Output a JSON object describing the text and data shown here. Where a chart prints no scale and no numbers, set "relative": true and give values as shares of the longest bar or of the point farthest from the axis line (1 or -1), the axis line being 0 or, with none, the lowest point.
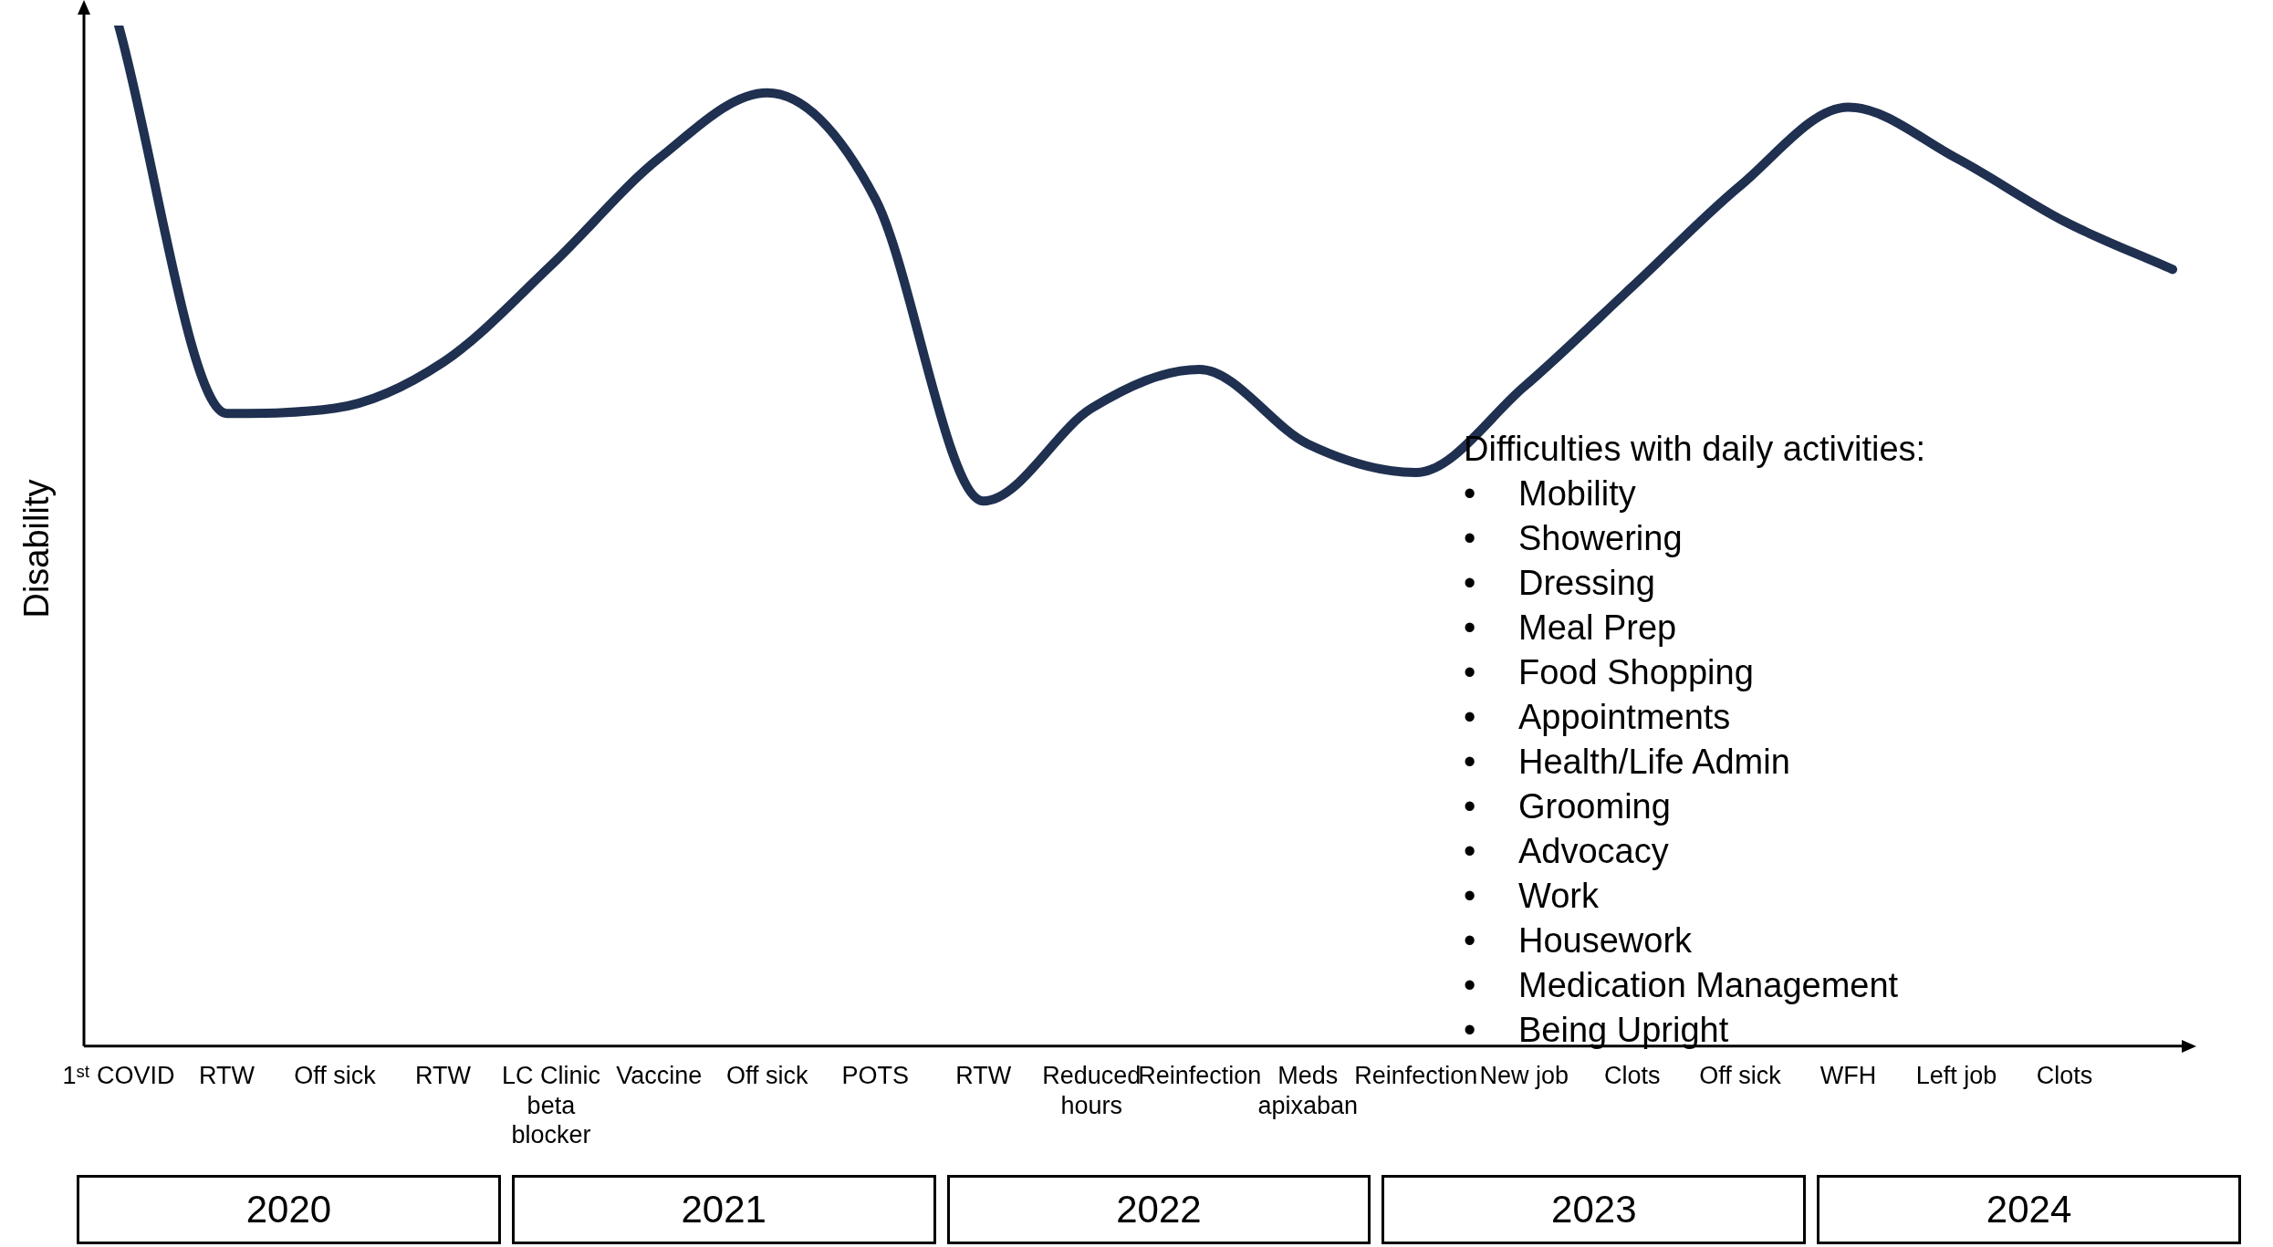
{
  "chart_data": {
    "type": "line",
    "relative": true,
    "ylabel": "Disability",
    "color": "#1f3050",
    "grid": false,
    "legend": false,
    "marker": "none",
    "line_style": "solid",
    "categories": [
      "1ˢᵗ COVID",
      "RTW",
      "Off sick",
      "RTW",
      "LC Clinic beta blocker",
      "Vaccine",
      "Off sick",
      "POTS",
      "RTW",
      "Reduced hours",
      "Reinfection",
      "Meds apixaban",
      "Reinfection",
      "New job",
      "Clots",
      "Off sick",
      "WFH",
      "Left job",
      "Clots",
      null
    ],
    "values": [
      1.0,
      0.62,
      0.625,
      0.67,
      0.765,
      0.87,
      0.934,
      0.83,
      0.534,
      0.625,
      0.663,
      0.59,
      0.562,
      0.646,
      0.744,
      0.843,
      0.92,
      0.87,
      0.808,
      0.761
    ],
    "annotations": [
      "2020",
      "2021",
      "2022",
      "2023",
      "2024",
      "Difficulties with daily activities:",
      "• Mobility",
      "• Showering",
      "• Dressing",
      "• Meal Prep",
      "• Food Shopping",
      "• Appointments",
      "• Health/Life Admin",
      "• Grooming",
      "• Advocacy",
      "• Work",
      "• Housework",
      "• Medication Management",
      "• Being Upright"
    ]
  }
}
